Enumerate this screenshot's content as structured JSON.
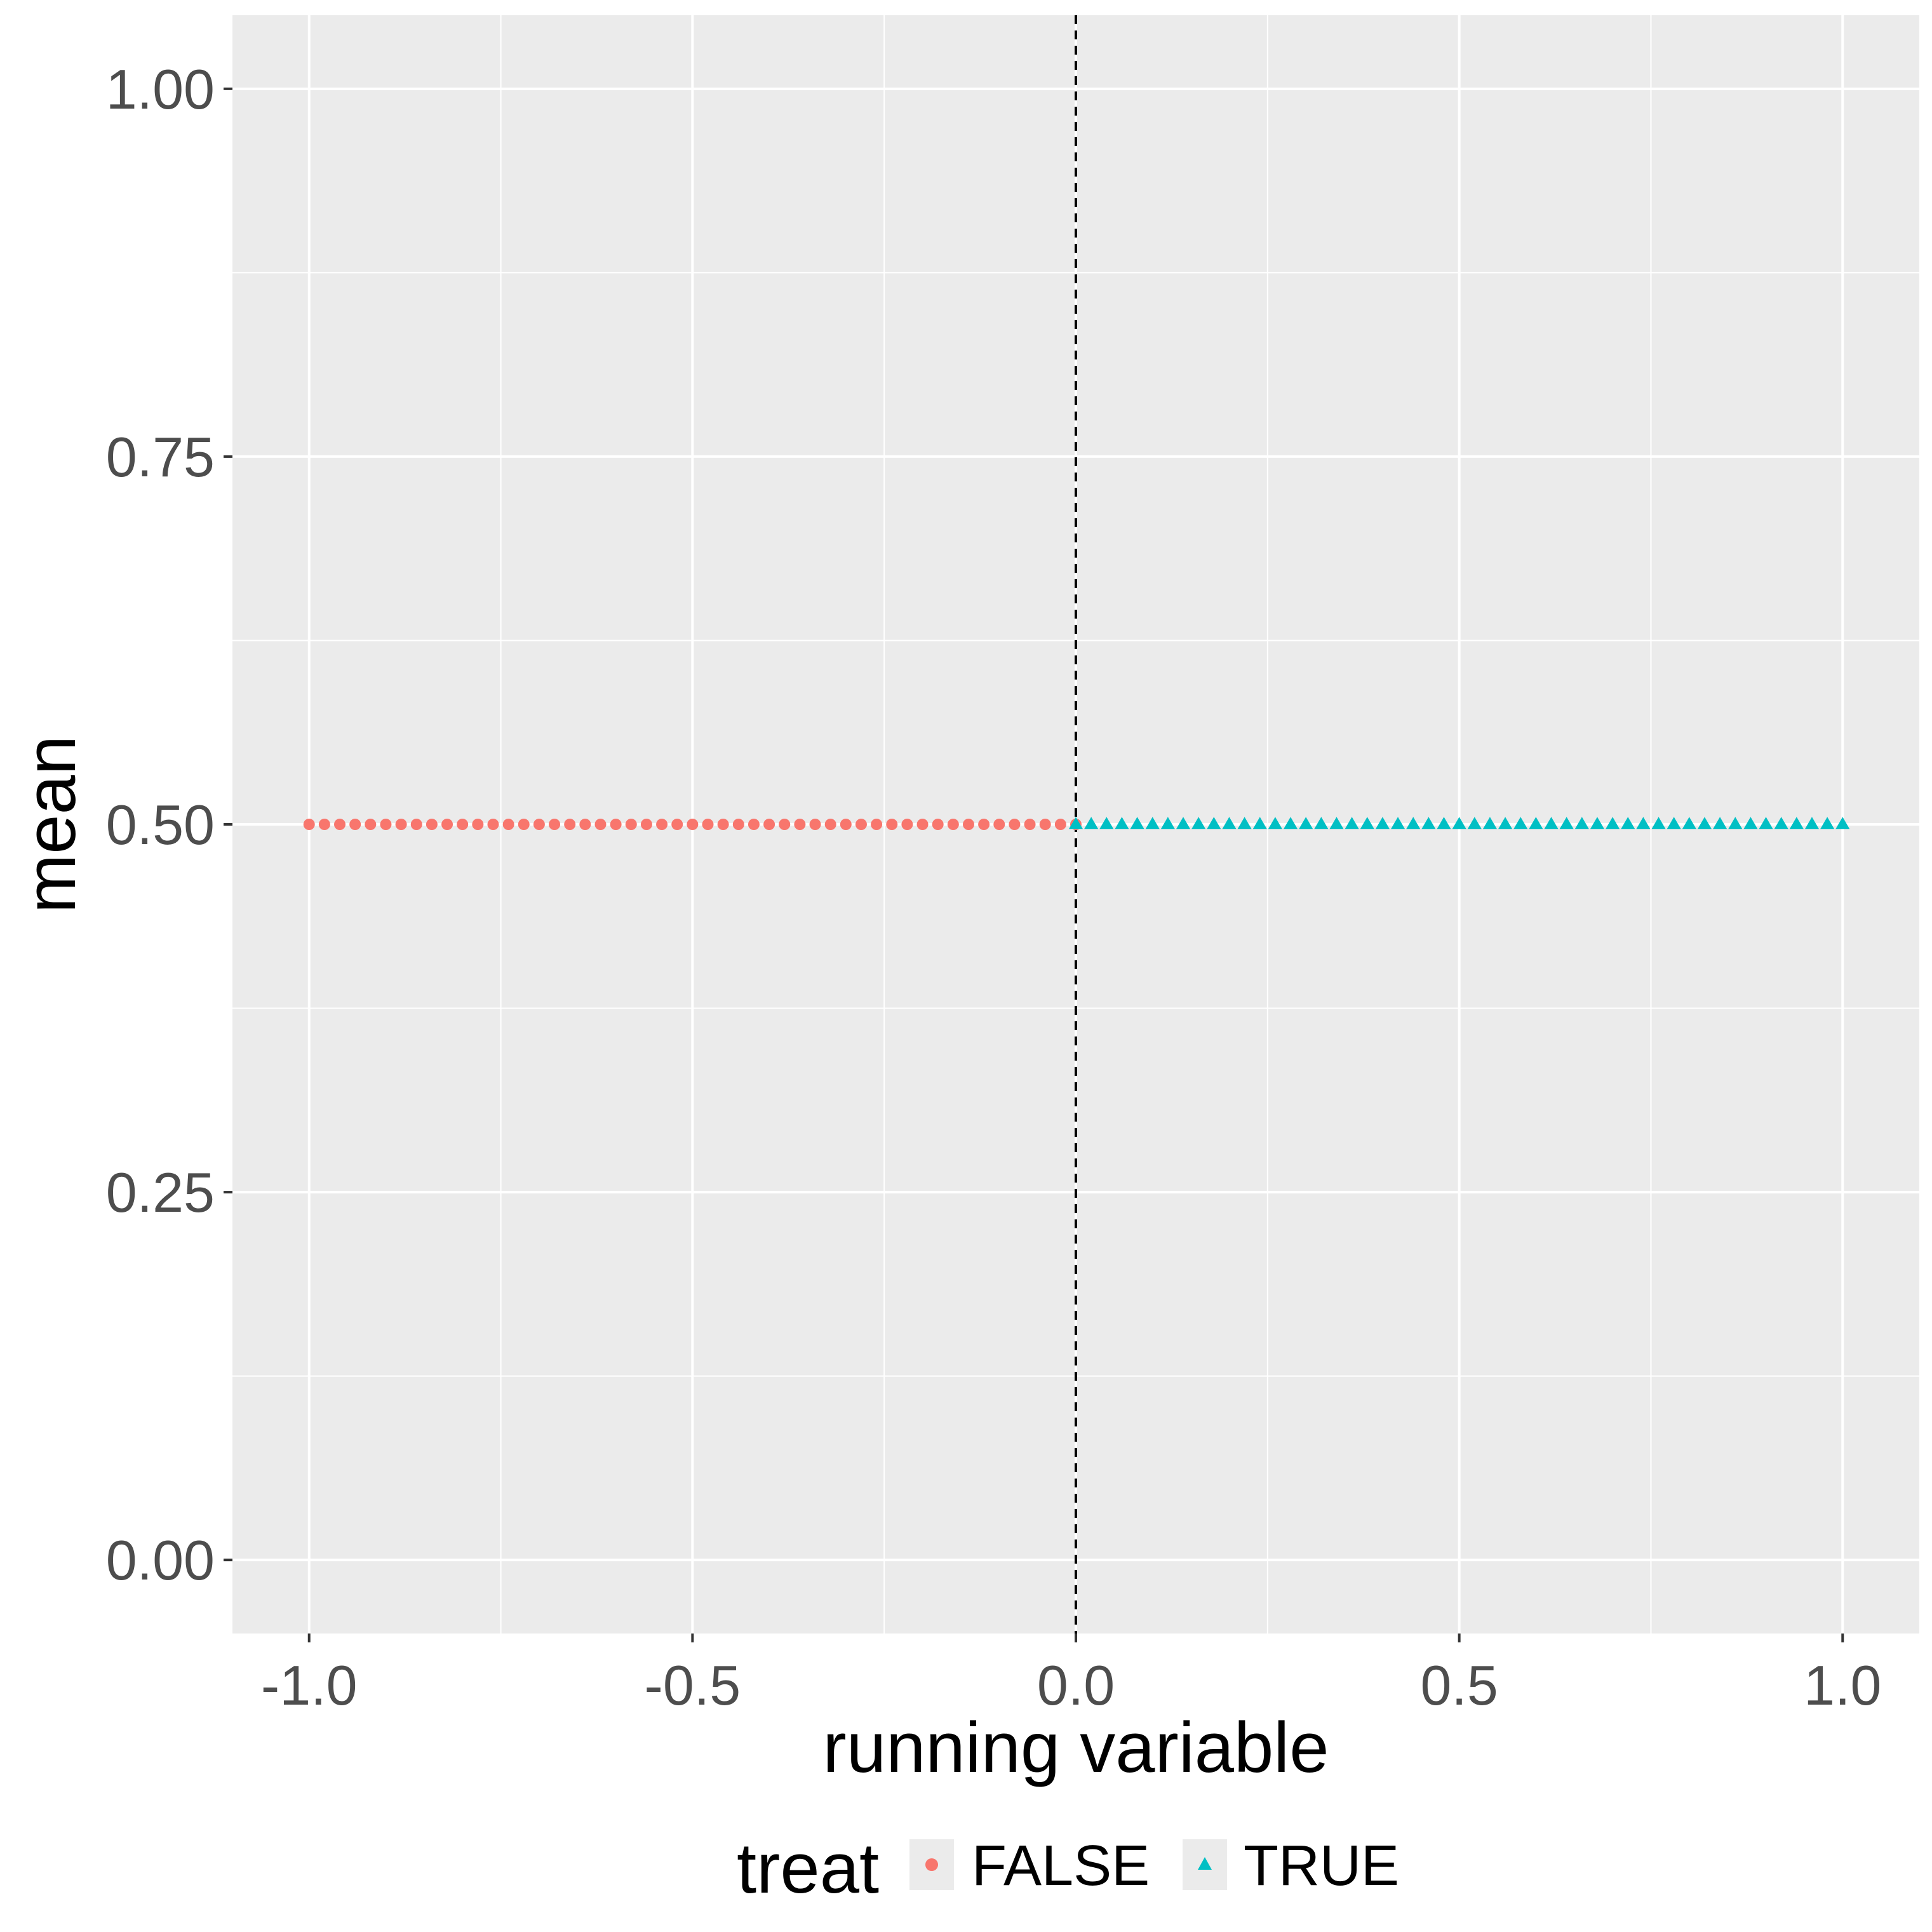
{
  "chart_data": {
    "type": "scatter",
    "title": "",
    "xlabel": "running variable",
    "ylabel": "mean",
    "xlim": [
      -1.1,
      1.1
    ],
    "ylim": [
      -0.05,
      1.05
    ],
    "x_ticks": [
      -1.0,
      -0.5,
      0.0,
      0.5,
      1.0
    ],
    "x_tick_labels": [
      "-1.0",
      "-0.5",
      "0.0",
      "0.5",
      "1.0"
    ],
    "y_ticks": [
      0.0,
      0.25,
      0.5,
      0.75,
      1.0
    ],
    "y_tick_labels": [
      "0.00",
      "0.25",
      "0.50",
      "0.75",
      "1.00"
    ],
    "grid": true,
    "background": "#ebebeb",
    "vline": {
      "x": 0.0,
      "style": "dashed",
      "color": "#000000"
    },
    "legend": {
      "title": "treat",
      "position": "bottom"
    },
    "series": [
      {
        "name": "FALSE",
        "marker": "circle",
        "color": "#f8766d",
        "x": [
          -1.0,
          -0.98,
          -0.96,
          -0.94,
          -0.92,
          -0.9,
          -0.88,
          -0.86,
          -0.84,
          -0.82,
          -0.8,
          -0.78,
          -0.76,
          -0.74,
          -0.72,
          -0.7,
          -0.68,
          -0.66,
          -0.64,
          -0.62,
          -0.6,
          -0.58,
          -0.56,
          -0.54,
          -0.52,
          -0.5,
          -0.48,
          -0.46,
          -0.44,
          -0.42,
          -0.4,
          -0.38,
          -0.36,
          -0.34,
          -0.32,
          -0.3,
          -0.28,
          -0.26,
          -0.24,
          -0.22,
          -0.2,
          -0.18,
          -0.16,
          -0.14,
          -0.12,
          -0.1,
          -0.08,
          -0.06,
          -0.04,
          -0.02,
          0.0
        ],
        "y": [
          0.5,
          0.5,
          0.5,
          0.5,
          0.5,
          0.5,
          0.5,
          0.5,
          0.5,
          0.5,
          0.5,
          0.5,
          0.5,
          0.5,
          0.5,
          0.5,
          0.5,
          0.5,
          0.5,
          0.5,
          0.5,
          0.5,
          0.5,
          0.5,
          0.5,
          0.5,
          0.5,
          0.5,
          0.5,
          0.5,
          0.5,
          0.5,
          0.5,
          0.5,
          0.5,
          0.5,
          0.5,
          0.5,
          0.5,
          0.5,
          0.5,
          0.5,
          0.5,
          0.5,
          0.5,
          0.5,
          0.5,
          0.5,
          0.5,
          0.5,
          0.5
        ]
      },
      {
        "name": "TRUE",
        "marker": "triangle",
        "color": "#00bfc4",
        "x": [
          0.0,
          0.02,
          0.04,
          0.06,
          0.08,
          0.1,
          0.12,
          0.14,
          0.16,
          0.18,
          0.2,
          0.22,
          0.24,
          0.26,
          0.28,
          0.3,
          0.32,
          0.34,
          0.36,
          0.38,
          0.4,
          0.42,
          0.44,
          0.46,
          0.48,
          0.5,
          0.52,
          0.54,
          0.56,
          0.58,
          0.6,
          0.62,
          0.64,
          0.66,
          0.68,
          0.7,
          0.72,
          0.74,
          0.76,
          0.78,
          0.8,
          0.82,
          0.84,
          0.86,
          0.88,
          0.9,
          0.92,
          0.94,
          0.96,
          0.98,
          1.0
        ],
        "y": [
          0.5,
          0.5,
          0.5,
          0.5,
          0.5,
          0.5,
          0.5,
          0.5,
          0.5,
          0.5,
          0.5,
          0.5,
          0.5,
          0.5,
          0.5,
          0.5,
          0.5,
          0.5,
          0.5,
          0.5,
          0.5,
          0.5,
          0.5,
          0.5,
          0.5,
          0.5,
          0.5,
          0.5,
          0.5,
          0.5,
          0.5,
          0.5,
          0.5,
          0.5,
          0.5,
          0.5,
          0.5,
          0.5,
          0.5,
          0.5,
          0.5,
          0.5,
          0.5,
          0.5,
          0.5,
          0.5,
          0.5,
          0.5,
          0.5,
          0.5,
          0.5
        ]
      }
    ]
  }
}
